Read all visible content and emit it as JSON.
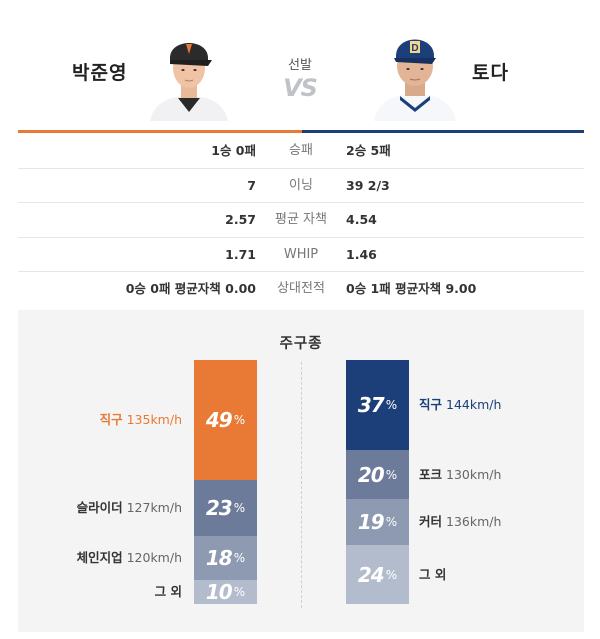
{
  "players": {
    "left": {
      "name": "박준영"
    },
    "right": {
      "name": "토다"
    }
  },
  "header": {
    "starter_label": "선발",
    "vs_label": "VS"
  },
  "stats": [
    {
      "label": "승패",
      "left": "1승 0패",
      "right": "2승 5패"
    },
    {
      "label": "이닝",
      "left": "7",
      "right": "39 2/3"
    },
    {
      "label": "평균 자책",
      "left": "2.57",
      "right": "4.54"
    },
    {
      "label": "WHIP",
      "left": "1.71",
      "right": "1.46"
    },
    {
      "label": "상대전적",
      "left": "0승 0패 평균자책 0.00",
      "right": "0승 1패 평균자책 9.00"
    }
  ],
  "pitches": {
    "title": "주구종",
    "percent_sign": "%",
    "left": [
      {
        "name": "직구",
        "speed": "135km/h",
        "pct": "49",
        "color": "#e87a35"
      },
      {
        "name": "슬라이더",
        "speed": "127km/h",
        "pct": "23",
        "color": "#6c7b99"
      },
      {
        "name": "체인지업",
        "speed": "120km/h",
        "pct": "18",
        "color": "#8e9ab2"
      },
      {
        "name": "그 외",
        "speed": "",
        "pct": "10",
        "color": "#b3bccc"
      }
    ],
    "right": [
      {
        "name": "직구",
        "speed": "144km/h",
        "pct": "37",
        "color": "#1c3f7a"
      },
      {
        "name": "포크",
        "speed": "130km/h",
        "pct": "20",
        "color": "#6c7b99"
      },
      {
        "name": "커터",
        "speed": "136km/h",
        "pct": "19",
        "color": "#8e9ab2"
      },
      {
        "name": "그 외",
        "speed": "",
        "pct": "24",
        "color": "#b3bccc"
      }
    ]
  },
  "colors": {
    "left_accent": "#e87a35",
    "right_accent": "#1c3f7a"
  }
}
